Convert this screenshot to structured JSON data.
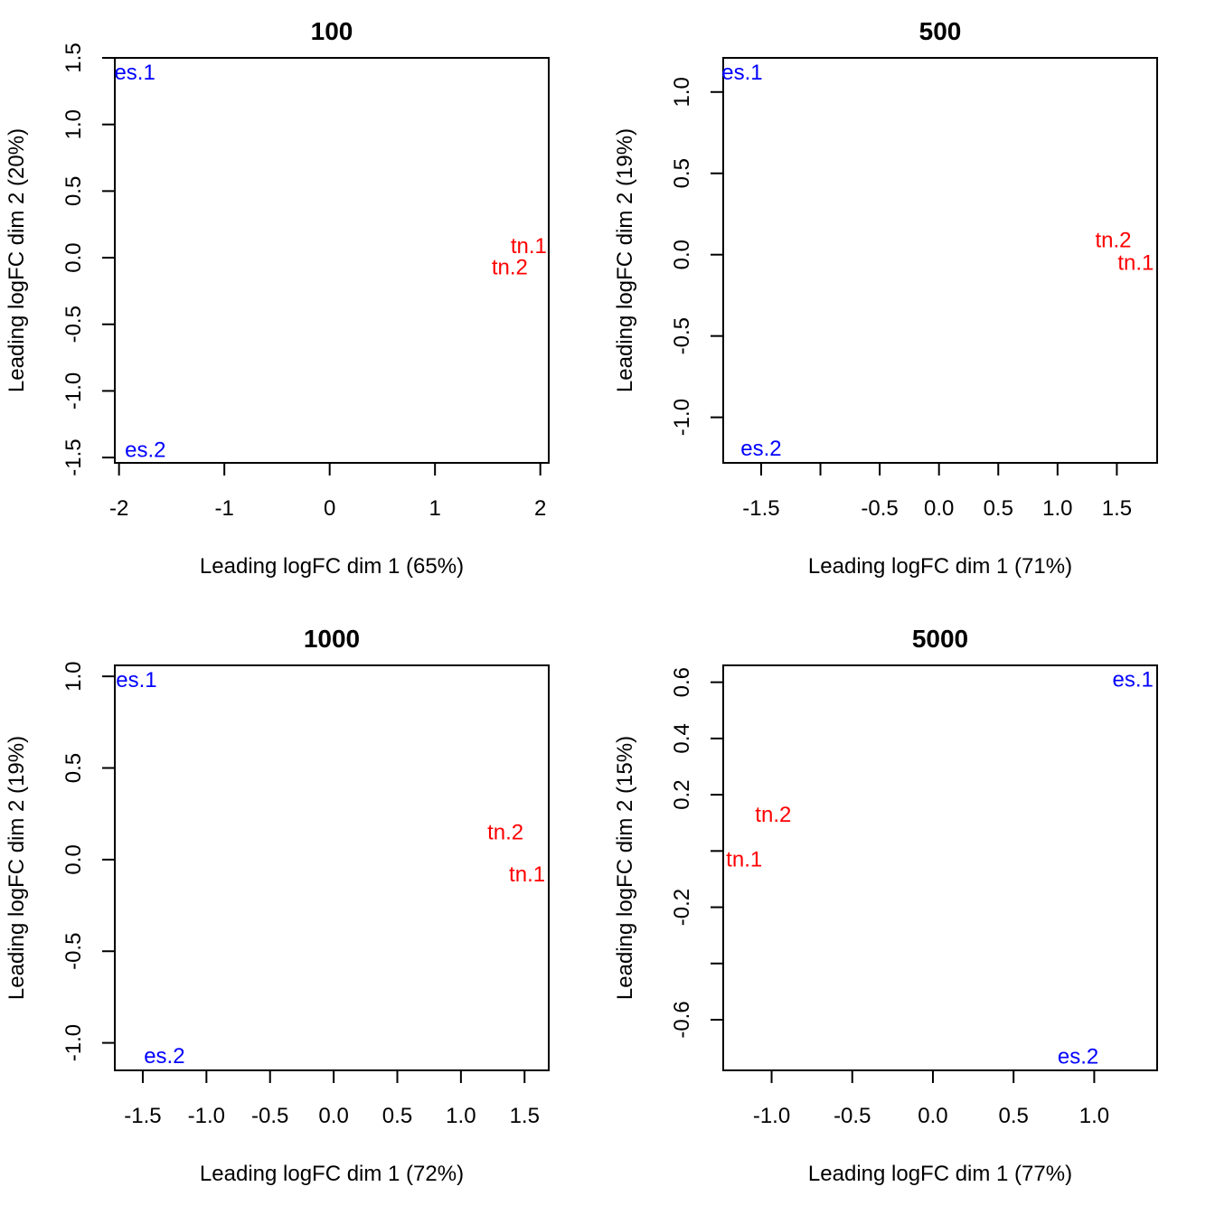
{
  "chart_data": [
    {
      "type": "scatter",
      "title": "100",
      "xlabel": "Leading logFC dim 1 (65%)",
      "ylabel": "Leading logFC dim 2 (20%)",
      "xlim": [
        -2.04,
        2.08
      ],
      "ylim": [
        -1.54,
        1.5
      ],
      "xticks": [
        -2,
        -1,
        0,
        1,
        2
      ],
      "xtick_labels": [
        "-2",
        "-1",
        "0",
        "1",
        "2"
      ],
      "yticks": [
        -1.5,
        -1.0,
        -0.5,
        0.0,
        0.5,
        1.0,
        1.5
      ],
      "ytick_labels": [
        "-1.5",
        "-1.0",
        "-0.5",
        "0.0",
        "0.5",
        "1.0",
        "1.5"
      ],
      "points": [
        {
          "label": "es.1",
          "x": -1.85,
          "y": 1.39,
          "color": "#0000ff"
        },
        {
          "label": "es.2",
          "x": -1.75,
          "y": -1.44,
          "color": "#0000ff"
        },
        {
          "label": "tn.1",
          "x": 1.89,
          "y": 0.09,
          "color": "#ff0000"
        },
        {
          "label": "tn.2",
          "x": 1.71,
          "y": -0.07,
          "color": "#ff0000"
        }
      ]
    },
    {
      "type": "scatter",
      "title": "500",
      "xlabel": "Leading logFC dim 1 (71%)",
      "ylabel": "Leading logFC dim 2 (19%)",
      "xlim": [
        -1.82,
        1.84
      ],
      "ylim": [
        -1.28,
        1.21
      ],
      "xticks": [
        -1.5,
        -1.0,
        -0.5,
        0.0,
        0.5,
        1.0,
        1.5
      ],
      "xtick_labels": [
        "-1.5",
        "",
        "-0.5",
        "0.0",
        "0.5",
        "1.0",
        "1.5"
      ],
      "yticks": [
        -1.0,
        -0.5,
        0.0,
        0.5,
        1.0
      ],
      "ytick_labels": [
        "-1.0",
        "-0.5",
        "0.0",
        "0.5",
        "1.0"
      ],
      "points": [
        {
          "label": "es.1",
          "x": -1.66,
          "y": 1.12,
          "color": "#0000ff"
        },
        {
          "label": "es.2",
          "x": -1.5,
          "y": -1.19,
          "color": "#0000ff"
        },
        {
          "label": "tn.2",
          "x": 1.47,
          "y": 0.09,
          "color": "#ff0000"
        },
        {
          "label": "tn.1",
          "x": 1.66,
          "y": -0.05,
          "color": "#ff0000"
        }
      ]
    },
    {
      "type": "scatter",
      "title": "1000",
      "xlabel": "Leading logFC dim 1 (72%)",
      "ylabel": "Leading logFC dim 2 (19%)",
      "xlim": [
        -1.72,
        1.69
      ],
      "ylim": [
        -1.15,
        1.06
      ],
      "xticks": [
        -1.5,
        -1.0,
        -0.5,
        0.0,
        0.5,
        1.0,
        1.5
      ],
      "xtick_labels": [
        "-1.5",
        "-1.0",
        "-0.5",
        "0.0",
        "0.5",
        "1.0",
        "1.5"
      ],
      "yticks": [
        -1.0,
        -0.5,
        0.0,
        0.5,
        1.0
      ],
      "ytick_labels": [
        "-1.0",
        "-0.5",
        "0.0",
        "0.5",
        "1.0"
      ],
      "points": [
        {
          "label": "es.1",
          "x": -1.55,
          "y": 0.98,
          "color": "#0000ff"
        },
        {
          "label": "es.2",
          "x": -1.33,
          "y": -1.07,
          "color": "#0000ff"
        },
        {
          "label": "tn.2",
          "x": 1.35,
          "y": 0.15,
          "color": "#ff0000"
        },
        {
          "label": "tn.1",
          "x": 1.52,
          "y": -0.08,
          "color": "#ff0000"
        }
      ]
    },
    {
      "type": "scatter",
      "title": "5000",
      "xlabel": "Leading logFC dim 1 (77%)",
      "ylabel": "Leading logFC dim 2 (15%)",
      "xlim": [
        -1.3,
        1.39
      ],
      "ylim": [
        -0.78,
        0.66
      ],
      "xticks": [
        -1.0,
        -0.5,
        0.0,
        0.5,
        1.0
      ],
      "xtick_labels": [
        "-1.0",
        "-0.5",
        "0.0",
        "0.5",
        "1.0"
      ],
      "yticks": [
        -0.6,
        -0.4,
        -0.2,
        0.0,
        0.2,
        0.4,
        0.6
      ],
      "ytick_labels": [
        "-0.6",
        "",
        "-0.2",
        "",
        "0.2",
        "0.4",
        "0.6"
      ],
      "points": [
        {
          "label": "es.1",
          "x": 1.24,
          "y": 0.61,
          "color": "#0000ff"
        },
        {
          "label": "es.2",
          "x": 0.9,
          "y": -0.73,
          "color": "#0000ff"
        },
        {
          "label": "tn.2",
          "x": -0.99,
          "y": 0.13,
          "color": "#ff0000"
        },
        {
          "label": "tn.1",
          "x": -1.17,
          "y": -0.03,
          "color": "#ff0000"
        }
      ]
    }
  ]
}
